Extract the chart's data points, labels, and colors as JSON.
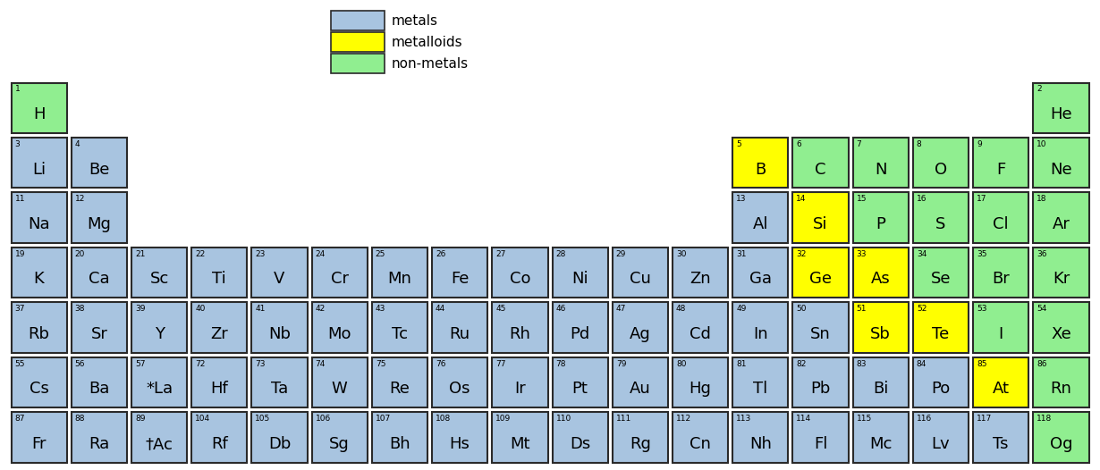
{
  "colors": {
    "metal": "#A8C4E0",
    "metalloid": "#FFFF00",
    "nonmetal": "#90EE90",
    "background": "#FFFFFF",
    "border": "#2a2a2a"
  },
  "legend": {
    "metals": "metals",
    "metalloids": "metalloids",
    "nonmetals": "non-metals"
  },
  "figsize": [
    12.3,
    5.26
  ],
  "dpi": 100,
  "elements": [
    {
      "symbol": "H",
      "number": 1,
      "row": 0,
      "col": 0,
      "type": "nonmetal"
    },
    {
      "symbol": "He",
      "number": 2,
      "row": 0,
      "col": 17,
      "type": "nonmetal"
    },
    {
      "symbol": "Li",
      "number": 3,
      "row": 1,
      "col": 0,
      "type": "metal"
    },
    {
      "symbol": "Be",
      "number": 4,
      "row": 1,
      "col": 1,
      "type": "metal"
    },
    {
      "symbol": "B",
      "number": 5,
      "row": 1,
      "col": 12,
      "type": "metalloid"
    },
    {
      "symbol": "C",
      "number": 6,
      "row": 1,
      "col": 13,
      "type": "nonmetal"
    },
    {
      "symbol": "N",
      "number": 7,
      "row": 1,
      "col": 14,
      "type": "nonmetal"
    },
    {
      "symbol": "O",
      "number": 8,
      "row": 1,
      "col": 15,
      "type": "nonmetal"
    },
    {
      "symbol": "F",
      "number": 9,
      "row": 1,
      "col": 16,
      "type": "nonmetal"
    },
    {
      "symbol": "Ne",
      "number": 10,
      "row": 1,
      "col": 17,
      "type": "nonmetal"
    },
    {
      "symbol": "Na",
      "number": 11,
      "row": 2,
      "col": 0,
      "type": "metal"
    },
    {
      "symbol": "Mg",
      "number": 12,
      "row": 2,
      "col": 1,
      "type": "metal"
    },
    {
      "symbol": "Al",
      "number": 13,
      "row": 2,
      "col": 12,
      "type": "metal"
    },
    {
      "symbol": "Si",
      "number": 14,
      "row": 2,
      "col": 13,
      "type": "metalloid"
    },
    {
      "symbol": "P",
      "number": 15,
      "row": 2,
      "col": 14,
      "type": "nonmetal"
    },
    {
      "symbol": "S",
      "number": 16,
      "row": 2,
      "col": 15,
      "type": "nonmetal"
    },
    {
      "symbol": "Cl",
      "number": 17,
      "row": 2,
      "col": 16,
      "type": "nonmetal"
    },
    {
      "symbol": "Ar",
      "number": 18,
      "row": 2,
      "col": 17,
      "type": "nonmetal"
    },
    {
      "symbol": "K",
      "number": 19,
      "row": 3,
      "col": 0,
      "type": "metal"
    },
    {
      "symbol": "Ca",
      "number": 20,
      "row": 3,
      "col": 1,
      "type": "metal"
    },
    {
      "symbol": "Sc",
      "number": 21,
      "row": 3,
      "col": 2,
      "type": "metal"
    },
    {
      "symbol": "Ti",
      "number": 22,
      "row": 3,
      "col": 3,
      "type": "metal"
    },
    {
      "symbol": "V",
      "number": 23,
      "row": 3,
      "col": 4,
      "type": "metal"
    },
    {
      "symbol": "Cr",
      "number": 24,
      "row": 3,
      "col": 5,
      "type": "metal"
    },
    {
      "symbol": "Mn",
      "number": 25,
      "row": 3,
      "col": 6,
      "type": "metal"
    },
    {
      "symbol": "Fe",
      "number": 26,
      "row": 3,
      "col": 7,
      "type": "metal"
    },
    {
      "symbol": "Co",
      "number": 27,
      "row": 3,
      "col": 8,
      "type": "metal"
    },
    {
      "symbol": "Ni",
      "number": 28,
      "row": 3,
      "col": 9,
      "type": "metal"
    },
    {
      "symbol": "Cu",
      "number": 29,
      "row": 3,
      "col": 10,
      "type": "metal"
    },
    {
      "symbol": "Zn",
      "number": 30,
      "row": 3,
      "col": 11,
      "type": "metal"
    },
    {
      "symbol": "Ga",
      "number": 31,
      "row": 3,
      "col": 12,
      "type": "metal"
    },
    {
      "symbol": "Ge",
      "number": 32,
      "row": 3,
      "col": 13,
      "type": "metalloid"
    },
    {
      "symbol": "As",
      "number": 33,
      "row": 3,
      "col": 14,
      "type": "metalloid"
    },
    {
      "symbol": "Se",
      "number": 34,
      "row": 3,
      "col": 15,
      "type": "nonmetal"
    },
    {
      "symbol": "Br",
      "number": 35,
      "row": 3,
      "col": 16,
      "type": "nonmetal"
    },
    {
      "symbol": "Kr",
      "number": 36,
      "row": 3,
      "col": 17,
      "type": "nonmetal"
    },
    {
      "symbol": "Rb",
      "number": 37,
      "row": 4,
      "col": 0,
      "type": "metal"
    },
    {
      "symbol": "Sr",
      "number": 38,
      "row": 4,
      "col": 1,
      "type": "metal"
    },
    {
      "symbol": "Y",
      "number": 39,
      "row": 4,
      "col": 2,
      "type": "metal"
    },
    {
      "symbol": "Zr",
      "number": 40,
      "row": 4,
      "col": 3,
      "type": "metal"
    },
    {
      "symbol": "Nb",
      "number": 41,
      "row": 4,
      "col": 4,
      "type": "metal"
    },
    {
      "symbol": "Mo",
      "number": 42,
      "row": 4,
      "col": 5,
      "type": "metal"
    },
    {
      "symbol": "Tc",
      "number": 43,
      "row": 4,
      "col": 6,
      "type": "metal"
    },
    {
      "symbol": "Ru",
      "number": 44,
      "row": 4,
      "col": 7,
      "type": "metal"
    },
    {
      "symbol": "Rh",
      "number": 45,
      "row": 4,
      "col": 8,
      "type": "metal"
    },
    {
      "symbol": "Pd",
      "number": 46,
      "row": 4,
      "col": 9,
      "type": "metal"
    },
    {
      "symbol": "Ag",
      "number": 47,
      "row": 4,
      "col": 10,
      "type": "metal"
    },
    {
      "symbol": "Cd",
      "number": 48,
      "row": 4,
      "col": 11,
      "type": "metal"
    },
    {
      "symbol": "In",
      "number": 49,
      "row": 4,
      "col": 12,
      "type": "metal"
    },
    {
      "symbol": "Sn",
      "number": 50,
      "row": 4,
      "col": 13,
      "type": "metal"
    },
    {
      "symbol": "Sb",
      "number": 51,
      "row": 4,
      "col": 14,
      "type": "metalloid"
    },
    {
      "symbol": "Te",
      "number": 52,
      "row": 4,
      "col": 15,
      "type": "metalloid"
    },
    {
      "symbol": "I",
      "number": 53,
      "row": 4,
      "col": 16,
      "type": "nonmetal"
    },
    {
      "symbol": "Xe",
      "number": 54,
      "row": 4,
      "col": 17,
      "type": "nonmetal"
    },
    {
      "symbol": "Cs",
      "number": 55,
      "row": 5,
      "col": 0,
      "type": "metal"
    },
    {
      "symbol": "Ba",
      "number": 56,
      "row": 5,
      "col": 1,
      "type": "metal"
    },
    {
      "symbol": "*La",
      "number": 57,
      "row": 5,
      "col": 2,
      "type": "metal"
    },
    {
      "symbol": "Hf",
      "number": 72,
      "row": 5,
      "col": 3,
      "type": "metal"
    },
    {
      "symbol": "Ta",
      "number": 73,
      "row": 5,
      "col": 4,
      "type": "metal"
    },
    {
      "symbol": "W",
      "number": 74,
      "row": 5,
      "col": 5,
      "type": "metal"
    },
    {
      "symbol": "Re",
      "number": 75,
      "row": 5,
      "col": 6,
      "type": "metal"
    },
    {
      "symbol": "Os",
      "number": 76,
      "row": 5,
      "col": 7,
      "type": "metal"
    },
    {
      "symbol": "Ir",
      "number": 77,
      "row": 5,
      "col": 8,
      "type": "metal"
    },
    {
      "symbol": "Pt",
      "number": 78,
      "row": 5,
      "col": 9,
      "type": "metal"
    },
    {
      "symbol": "Au",
      "number": 79,
      "row": 5,
      "col": 10,
      "type": "metal"
    },
    {
      "symbol": "Hg",
      "number": 80,
      "row": 5,
      "col": 11,
      "type": "metal"
    },
    {
      "symbol": "Tl",
      "number": 81,
      "row": 5,
      "col": 12,
      "type": "metal"
    },
    {
      "symbol": "Pb",
      "number": 82,
      "row": 5,
      "col": 13,
      "type": "metal"
    },
    {
      "symbol": "Bi",
      "number": 83,
      "row": 5,
      "col": 14,
      "type": "metal"
    },
    {
      "symbol": "Po",
      "number": 84,
      "row": 5,
      "col": 15,
      "type": "metal"
    },
    {
      "symbol": "At",
      "number": 85,
      "row": 5,
      "col": 16,
      "type": "metalloid"
    },
    {
      "symbol": "Rn",
      "number": 86,
      "row": 5,
      "col": 17,
      "type": "nonmetal"
    },
    {
      "symbol": "Fr",
      "number": 87,
      "row": 6,
      "col": 0,
      "type": "metal"
    },
    {
      "symbol": "Ra",
      "number": 88,
      "row": 6,
      "col": 1,
      "type": "metal"
    },
    {
      "symbol": "†Ac",
      "number": 89,
      "row": 6,
      "col": 2,
      "type": "metal"
    },
    {
      "symbol": "Rf",
      "number": 104,
      "row": 6,
      "col": 3,
      "type": "metal"
    },
    {
      "symbol": "Db",
      "number": 105,
      "row": 6,
      "col": 4,
      "type": "metal"
    },
    {
      "symbol": "Sg",
      "number": 106,
      "row": 6,
      "col": 5,
      "type": "metal"
    },
    {
      "symbol": "Bh",
      "number": 107,
      "row": 6,
      "col": 6,
      "type": "metal"
    },
    {
      "symbol": "Hs",
      "number": 108,
      "row": 6,
      "col": 7,
      "type": "metal"
    },
    {
      "symbol": "Mt",
      "number": 109,
      "row": 6,
      "col": 8,
      "type": "metal"
    },
    {
      "symbol": "Ds",
      "number": 110,
      "row": 6,
      "col": 9,
      "type": "metal"
    },
    {
      "symbol": "Rg",
      "number": 111,
      "row": 6,
      "col": 10,
      "type": "metal"
    },
    {
      "symbol": "Cn",
      "number": 112,
      "row": 6,
      "col": 11,
      "type": "metal"
    },
    {
      "symbol": "Nh",
      "number": 113,
      "row": 6,
      "col": 12,
      "type": "metal"
    },
    {
      "symbol": "Fl",
      "number": 114,
      "row": 6,
      "col": 13,
      "type": "metal"
    },
    {
      "symbol": "Mc",
      "number": 115,
      "row": 6,
      "col": 14,
      "type": "metal"
    },
    {
      "symbol": "Lv",
      "number": 116,
      "row": 6,
      "col": 15,
      "type": "metal"
    },
    {
      "symbol": "Ts",
      "number": 117,
      "row": 6,
      "col": 16,
      "type": "metal"
    },
    {
      "symbol": "Og",
      "number": 118,
      "row": 6,
      "col": 17,
      "type": "nonmetal"
    }
  ]
}
